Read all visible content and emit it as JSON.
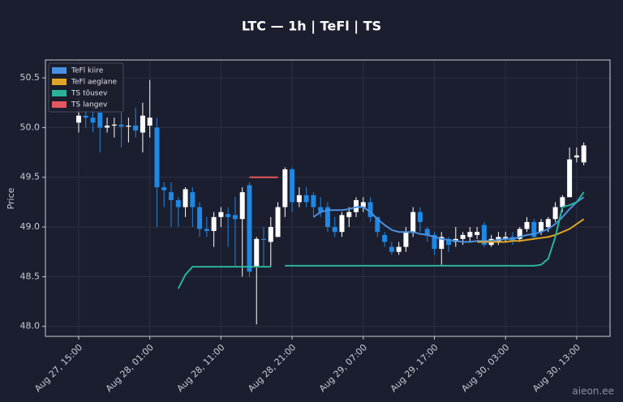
{
  "chart_data": {
    "type": "candlestick",
    "title": "LTC — 1h  |  TeFl  |  TS",
    "ylabel": "Price",
    "watermark": "aieon.ee",
    "x": [
      "Aug 27, 15:00",
      "Aug 27, 16:00",
      "Aug 27, 17:00",
      "Aug 27, 18:00",
      "Aug 27, 19:00",
      "Aug 27, 20:00",
      "Aug 27, 21:00",
      "Aug 27, 22:00",
      "Aug 27, 23:00",
      "Aug 28, 00:00",
      "Aug 28, 01:00",
      "Aug 28, 02:00",
      "Aug 28, 03:00",
      "Aug 28, 04:00",
      "Aug 28, 05:00",
      "Aug 28, 06:00",
      "Aug 28, 07:00",
      "Aug 28, 08:00",
      "Aug 28, 09:00",
      "Aug 28, 10:00",
      "Aug 28, 11:00",
      "Aug 28, 12:00",
      "Aug 28, 13:00",
      "Aug 28, 14:00",
      "Aug 28, 15:00",
      "Aug 28, 16:00",
      "Aug 28, 17:00",
      "Aug 28, 18:00",
      "Aug 28, 19:00",
      "Aug 28, 20:00",
      "Aug 28, 21:00",
      "Aug 28, 22:00",
      "Aug 28, 23:00",
      "Aug 29, 00:00",
      "Aug 29, 01:00",
      "Aug 29, 02:00",
      "Aug 29, 03:00",
      "Aug 29, 04:00",
      "Aug 29, 05:00",
      "Aug 29, 06:00",
      "Aug 29, 07:00",
      "Aug 29, 08:00",
      "Aug 29, 09:00",
      "Aug 29, 10:00",
      "Aug 29, 11:00",
      "Aug 29, 12:00",
      "Aug 29, 13:00",
      "Aug 29, 14:00",
      "Aug 29, 15:00",
      "Aug 29, 16:00",
      "Aug 29, 17:00",
      "Aug 29, 18:00",
      "Aug 29, 19:00",
      "Aug 29, 20:00",
      "Aug 29, 21:00",
      "Aug 29, 22:00",
      "Aug 29, 23:00",
      "Aug 30, 00:00",
      "Aug 30, 01:00",
      "Aug 30, 02:00",
      "Aug 30, 03:00",
      "Aug 30, 04:00",
      "Aug 30, 05:00",
      "Aug 30, 06:00",
      "Aug 30, 07:00",
      "Aug 30, 08:00",
      "Aug 30, 09:00",
      "Aug 30, 10:00",
      "Aug 30, 11:00",
      "Aug 30, 12:00",
      "Aug 30, 13:00",
      "Aug 30, 14:00"
    ],
    "open": [
      50.05,
      50.12,
      50.1,
      50.15,
      50.0,
      50.02,
      50.03,
      50.01,
      50.02,
      49.95,
      50.02,
      50.0,
      49.4,
      49.35,
      49.27,
      49.2,
      49.35,
      49.2,
      48.98,
      48.96,
      49.1,
      49.13,
      49.12,
      49.08,
      49.42,
      48.6,
      48.88,
      48.85,
      48.9,
      49.2,
      49.58,
      49.25,
      49.32,
      49.32,
      49.2,
      49.2,
      49.0,
      48.95,
      49.1,
      49.15,
      49.2,
      49.25,
      49.1,
      48.92,
      48.8,
      48.75,
      48.8,
      48.95,
      49.15,
      48.98,
      48.92,
      48.78,
      48.88,
      48.85,
      48.88,
      48.9,
      48.92,
      49.02,
      48.82,
      48.85,
      48.88,
      48.9,
      48.88,
      48.98,
      49.05,
      48.95,
      49.0,
      49.08,
      49.2,
      49.3,
      49.7,
      49.65
    ],
    "high": [
      50.3,
      50.2,
      50.2,
      50.2,
      50.1,
      50.1,
      50.15,
      50.1,
      50.2,
      50.25,
      50.48,
      50.1,
      49.45,
      49.45,
      49.3,
      49.4,
      49.4,
      49.25,
      49.1,
      49.15,
      49.2,
      49.2,
      49.3,
      49.4,
      49.45,
      48.9,
      49.0,
      49.1,
      49.25,
      49.6,
      49.6,
      49.4,
      49.4,
      49.35,
      49.3,
      49.25,
      49.1,
      49.15,
      49.2,
      49.3,
      49.3,
      49.3,
      49.1,
      48.95,
      48.85,
      48.85,
      49.0,
      49.2,
      49.2,
      49.0,
      48.95,
      48.95,
      48.9,
      49.0,
      48.95,
      49.0,
      49.0,
      49.05,
      48.92,
      48.95,
      48.95,
      48.95,
      49.0,
      49.1,
      49.08,
      49.08,
      49.1,
      49.25,
      49.32,
      49.8,
      49.8,
      49.85
    ],
    "low": [
      49.95,
      50.0,
      49.95,
      49.75,
      49.95,
      49.9,
      49.8,
      49.85,
      49.9,
      49.75,
      49.9,
      49.0,
      49.2,
      49.0,
      49.0,
      49.1,
      49.0,
      48.9,
      48.9,
      48.8,
      49.0,
      48.8,
      48.6,
      48.5,
      48.5,
      48.02,
      48.6,
      48.6,
      48.9,
      49.1,
      49.15,
      49.2,
      49.2,
      49.1,
      49.1,
      48.95,
      48.9,
      48.9,
      49.0,
      49.1,
      49.15,
      49.05,
      48.9,
      48.8,
      48.72,
      48.72,
      48.75,
      48.9,
      48.95,
      48.85,
      48.72,
      48.62,
      48.75,
      48.8,
      48.82,
      48.85,
      48.88,
      48.8,
      48.8,
      48.82,
      48.85,
      48.82,
      48.85,
      48.95,
      48.88,
      48.92,
      48.95,
      49.05,
      49.15,
      49.3,
      49.65,
      49.62
    ],
    "close": [
      50.12,
      50.1,
      50.05,
      50.0,
      50.02,
      50.03,
      50.01,
      50.02,
      49.97,
      50.12,
      50.1,
      49.4,
      49.37,
      49.27,
      49.2,
      49.38,
      49.2,
      48.98,
      48.96,
      49.1,
      49.15,
      49.1,
      49.08,
      49.35,
      48.55,
      48.88,
      48.87,
      49.0,
      49.2,
      49.58,
      49.25,
      49.32,
      49.25,
      49.2,
      49.15,
      49.0,
      48.95,
      49.12,
      49.15,
      49.27,
      49.25,
      49.1,
      48.95,
      48.85,
      48.75,
      48.8,
      48.95,
      49.15,
      49.05,
      48.92,
      48.78,
      48.9,
      48.82,
      48.88,
      48.92,
      48.95,
      48.95,
      48.82,
      48.88,
      48.9,
      48.9,
      48.86,
      48.98,
      49.05,
      48.9,
      49.05,
      49.08,
      49.2,
      49.3,
      49.68,
      49.72,
      49.82
    ],
    "up_color": "#ffffff",
    "down_color": "#1e88e5",
    "series": [
      {
        "name": "TeFl kiire",
        "color": "#4a90e2",
        "values": [
          null,
          null,
          null,
          null,
          null,
          null,
          null,
          null,
          null,
          null,
          null,
          null,
          null,
          null,
          null,
          null,
          null,
          null,
          null,
          null,
          null,
          null,
          null,
          null,
          null,
          null,
          null,
          null,
          null,
          null,
          null,
          null,
          null,
          49.1,
          49.15,
          49.17,
          49.17,
          49.17,
          49.18,
          49.2,
          49.2,
          49.15,
          49.08,
          49.02,
          48.97,
          48.95,
          48.95,
          48.95,
          48.93,
          48.92,
          48.9,
          48.88,
          48.87,
          48.86,
          48.85,
          48.85,
          48.86,
          48.86,
          48.86,
          48.87,
          48.88,
          48.88,
          48.9,
          48.92,
          48.93,
          48.95,
          48.98,
          49.03,
          49.1,
          49.18,
          49.25,
          49.3
        ]
      },
      {
        "name": "TeFl aeglane",
        "color": "#e0a526",
        "values": [
          null,
          null,
          null,
          null,
          null,
          null,
          null,
          null,
          null,
          null,
          null,
          null,
          null,
          null,
          null,
          null,
          null,
          null,
          null,
          null,
          null,
          null,
          null,
          null,
          null,
          null,
          null,
          null,
          null,
          null,
          null,
          null,
          null,
          null,
          null,
          null,
          null,
          null,
          null,
          null,
          null,
          null,
          null,
          null,
          null,
          null,
          null,
          null,
          null,
          null,
          null,
          null,
          null,
          null,
          null,
          null,
          48.85,
          48.85,
          48.85,
          48.85,
          48.85,
          48.86,
          48.86,
          48.87,
          48.88,
          48.89,
          48.9,
          48.92,
          48.95,
          48.98,
          49.03,
          49.08
        ]
      },
      {
        "name": "TS tõusev",
        "color": "#2bb39a",
        "values": [
          null,
          null,
          null,
          null,
          null,
          null,
          null,
          null,
          null,
          null,
          null,
          null,
          null,
          null,
          48.38,
          48.52,
          48.6,
          48.6,
          48.6,
          48.6,
          48.6,
          48.6,
          48.6,
          48.6,
          48.6,
          48.6,
          48.6,
          48.6,
          null,
          48.61,
          48.61,
          48.61,
          48.61,
          48.61,
          48.61,
          48.61,
          48.61,
          48.61,
          48.61,
          48.61,
          48.61,
          48.61,
          48.61,
          48.61,
          48.61,
          48.61,
          48.61,
          48.61,
          48.61,
          48.61,
          48.61,
          48.61,
          48.61,
          48.61,
          48.61,
          48.61,
          48.61,
          48.61,
          48.61,
          48.61,
          48.61,
          48.61,
          48.61,
          48.61,
          48.61,
          48.62,
          48.68,
          48.9,
          49.2,
          49.22,
          49.25,
          49.35
        ]
      },
      {
        "name": "TS langev",
        "color": "#e5575f",
        "values": [
          null,
          null,
          null,
          null,
          null,
          null,
          null,
          null,
          null,
          null,
          null,
          null,
          null,
          null,
          null,
          null,
          null,
          null,
          null,
          null,
          null,
          null,
          null,
          null,
          49.5,
          49.5,
          49.5,
          49.5,
          49.5,
          null,
          null,
          null,
          null,
          null,
          null,
          null,
          null,
          null,
          null,
          null,
          null,
          null,
          null,
          null,
          null,
          null,
          null,
          null,
          null,
          null,
          null,
          null,
          null,
          null,
          null,
          null,
          null,
          null,
          null,
          null,
          null,
          null,
          null,
          null,
          null,
          null,
          null,
          null,
          null,
          null,
          null,
          null
        ]
      }
    ],
    "ylim": [
      47.9,
      50.68
    ],
    "yticks": [
      {
        "value": 48,
        "label": "48.0"
      },
      48.5,
      {
        "value": 49,
        "label": "49.0"
      },
      49.5,
      {
        "value": 50,
        "label": "50.0"
      },
      50.5
    ],
    "xticks": [
      "Aug 27, 15:00",
      "Aug 28, 01:00",
      "Aug 28, 11:00",
      "Aug 28, 21:00",
      "Aug 29, 07:00",
      "Aug 29, 17:00",
      "Aug 30, 03:00",
      "Aug 30, 13:00"
    ],
    "grid": true,
    "legend": "upper left"
  }
}
